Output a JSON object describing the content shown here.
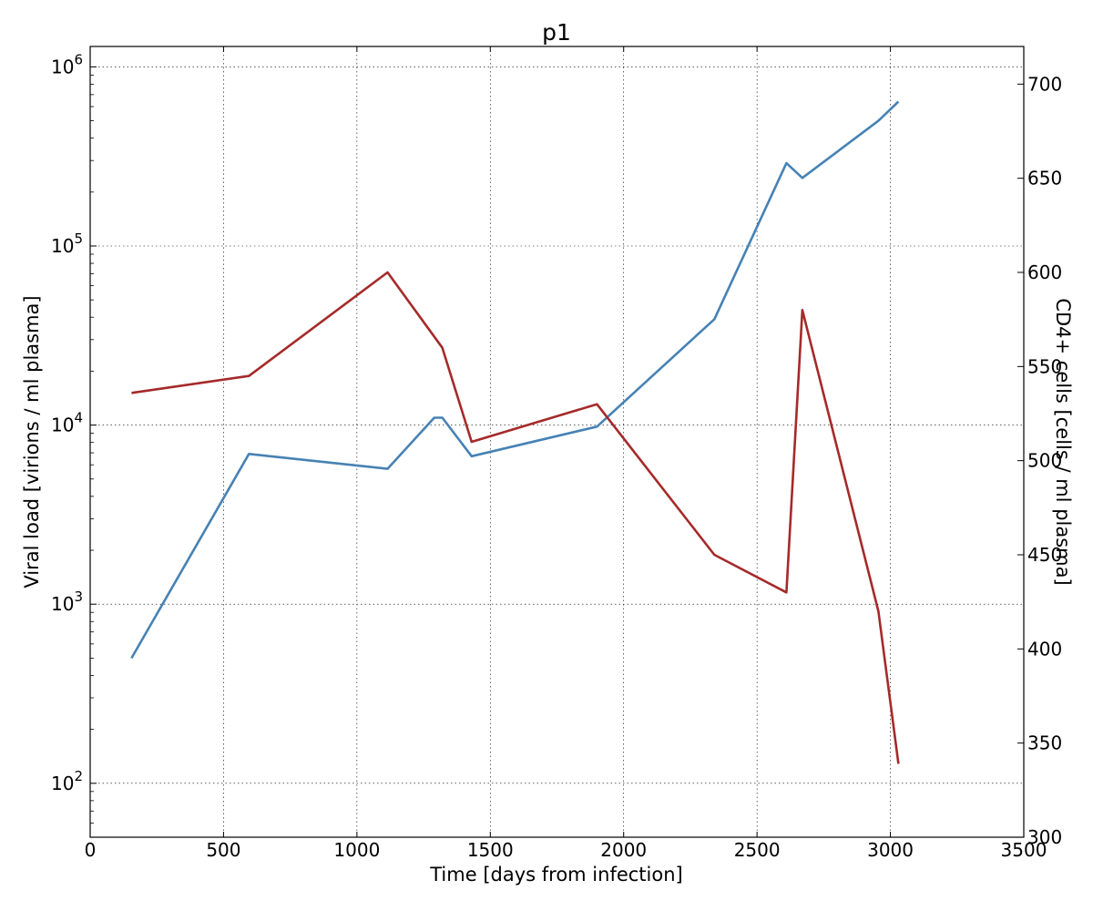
{
  "chart_data": {
    "type": "line",
    "title": "p1",
    "xlabel": "Time [days from infection]",
    "ylabel": "Viral load [virions / ml plasma]",
    "y2label": "CD4+ cells [cells / ml plasma]",
    "xlim": [
      0,
      3500
    ],
    "ylim": [
      50,
      1300000
    ],
    "yscale": "log",
    "y2lim": [
      300,
      720
    ],
    "grid": true,
    "x_ticks": [
      "0",
      "500",
      "1000",
      "1500",
      "2000",
      "2500",
      "3000",
      "3500"
    ],
    "y_ticks_base": "10",
    "y_ticks_exp": [
      "2",
      "3",
      "4",
      "5",
      "6"
    ],
    "y2_ticks": [
      "300",
      "350",
      "400",
      "450",
      "500",
      "550",
      "600",
      "650",
      "700"
    ],
    "series": [
      {
        "axis": "left",
        "color": "#4682b4",
        "x": [
          155,
          595,
          1115,
          1290,
          1320,
          1430,
          1900,
          2340,
          2610,
          2670,
          2955,
          3030
        ],
        "y": [
          500,
          6900,
          5700,
          11000,
          11000,
          6700,
          9800,
          39000,
          290000,
          240000,
          500000,
          640000
        ]
      },
      {
        "axis": "right",
        "color": "#a52a2a",
        "x": [
          155,
          595,
          1115,
          1320,
          1430,
          1900,
          2340,
          2610,
          2670,
          2955,
          3030
        ],
        "y": [
          536,
          545,
          600,
          560,
          510,
          530,
          450,
          430,
          580,
          420,
          339
        ]
      }
    ]
  }
}
